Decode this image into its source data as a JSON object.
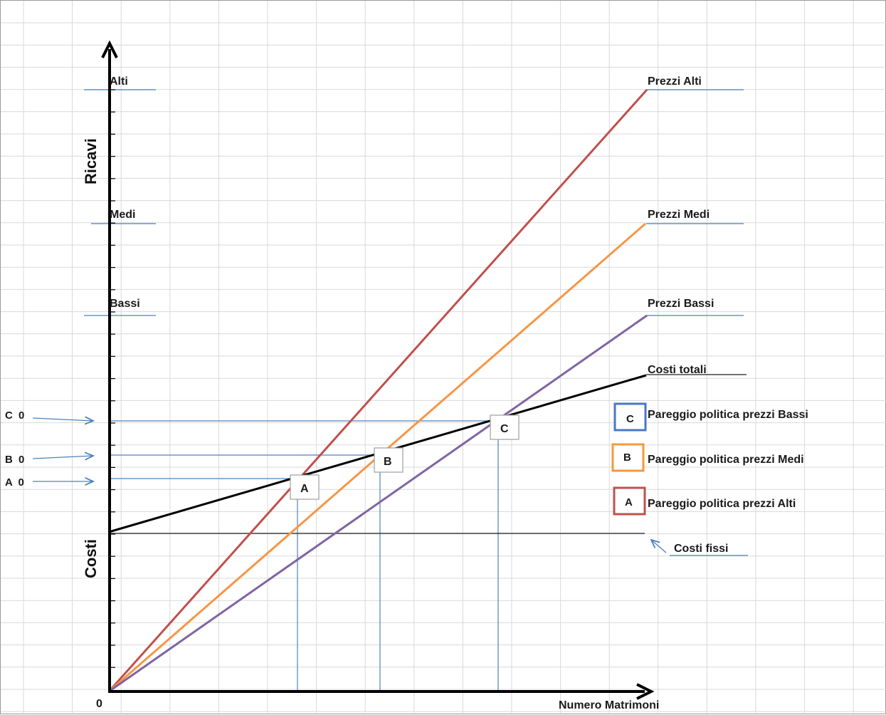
{
  "axes": {
    "y_revenue_label": "Ricavi",
    "y_cost_label": "Costi",
    "x_label": "Numero Matrimoni",
    "origin_label": "0"
  },
  "revenue_levels": {
    "high": "Alti",
    "medium": "Medi",
    "low": "Bassi"
  },
  "lines": {
    "price_high": "Prezzi Alti",
    "price_medium": "Prezzi Medi",
    "price_low": "Prezzi Bassi",
    "total_costs": "Costi totali",
    "fixed_costs": "Costi fissi"
  },
  "breakeven_points": {
    "a": "A",
    "b": "B",
    "c": "C"
  },
  "cost_levels": {
    "a0": "A 0",
    "b0": "B 0",
    "c0": "C 0"
  },
  "legend": {
    "items": [
      {
        "key": "C",
        "label": "Pareggio politica prezzi Bassi",
        "color": "#4a78c0"
      },
      {
        "key": "B",
        "label": "Pareggio  politica prezzi Medi",
        "color": "#f39a3c"
      },
      {
        "key": "A",
        "label": "Pareggio  politica prezzi Alti",
        "color": "#c0504d"
      }
    ]
  },
  "colors": {
    "high": "#c0504d",
    "medium": "#f79646",
    "low": "#8064a2",
    "total": "#000000",
    "guide": "#4f81bd",
    "grid": "#d9d9d9"
  }
}
